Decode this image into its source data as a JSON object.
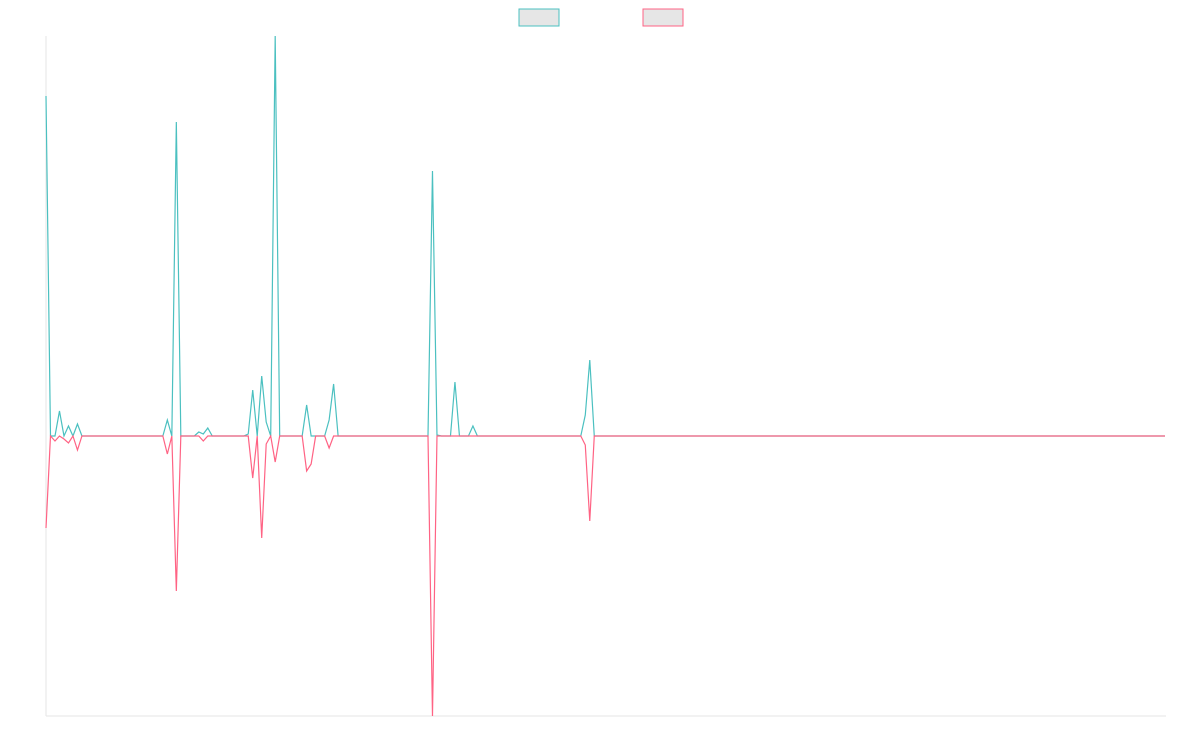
{
  "chart_data": {
    "type": "line",
    "ylim": [
      -280,
      400
    ],
    "series": [
      {
        "color": "#4bc0c0",
        "values": [
          340,
          0,
          0,
          25,
          0,
          10,
          0,
          12,
          0,
          0,
          0,
          0,
          0,
          0,
          0,
          0,
          0,
          0,
          0,
          0,
          0,
          0,
          0,
          0,
          0,
          0,
          0,
          16,
          0,
          314,
          0,
          0,
          0,
          0,
          4,
          2,
          8,
          0,
          0,
          0,
          0,
          0,
          0,
          0,
          0,
          2,
          46,
          0,
          60,
          14,
          0,
          400,
          0,
          0,
          0,
          0,
          0,
          0,
          31,
          0,
          0,
          0,
          0,
          16,
          52,
          0,
          0,
          0,
          0,
          0,
          0,
          0,
          0,
          0,
          0,
          0,
          0,
          0,
          0,
          0,
          0,
          0,
          0,
          0,
          0,
          0,
          265,
          1,
          0,
          0,
          0,
          54,
          0,
          0,
          0,
          10,
          0,
          0,
          0,
          0,
          0,
          0,
          0,
          0,
          0,
          0,
          0,
          0,
          0,
          0,
          0,
          0,
          0,
          0,
          0,
          0,
          0,
          0,
          0,
          0,
          21,
          76,
          0,
          0,
          0,
          0,
          0,
          0,
          0,
          0,
          0,
          0,
          0,
          0,
          0,
          0,
          0,
          0,
          0,
          0,
          0,
          0,
          0,
          0,
          0,
          0,
          0,
          0,
          0,
          0,
          0,
          0,
          0,
          0,
          0,
          0,
          0,
          0,
          0,
          0,
          0,
          0,
          0,
          0,
          0,
          0,
          0,
          0,
          0,
          0,
          0,
          0,
          0,
          0,
          0,
          0,
          0,
          0,
          0,
          0,
          0,
          0,
          0,
          0,
          0,
          0,
          0,
          0,
          0,
          0,
          0,
          0,
          0,
          0,
          0,
          0,
          0,
          0,
          0,
          0,
          0,
          0,
          0,
          0,
          0,
          0,
          0,
          0,
          0,
          0,
          0,
          0,
          0,
          0,
          0,
          0,
          0,
          0,
          0,
          0,
          0,
          0,
          0,
          0,
          0,
          0,
          0,
          0,
          0,
          0,
          0,
          0,
          0,
          0,
          0,
          0,
          0,
          0,
          0,
          0,
          0,
          0,
          0,
          0,
          0,
          0,
          0,
          0,
          0,
          0
        ]
      },
      {
        "color": "#ff6384",
        "values": [
          -92,
          0,
          -5,
          0,
          -3,
          -7,
          0,
          -14,
          0,
          0,
          0,
          0,
          0,
          0,
          0,
          0,
          0,
          0,
          0,
          0,
          0,
          0,
          0,
          0,
          0,
          0,
          0,
          -18,
          0,
          -155,
          0,
          0,
          0,
          0,
          0,
          -5,
          0,
          0,
          0,
          0,
          0,
          0,
          0,
          0,
          0,
          0,
          -42,
          0,
          -102,
          -8,
          0,
          -26,
          0,
          0,
          0,
          0,
          0,
          0,
          -35,
          -28,
          0,
          0,
          0,
          -12,
          0,
          0,
          0,
          0,
          0,
          0,
          0,
          0,
          0,
          0,
          0,
          0,
          0,
          0,
          0,
          0,
          0,
          0,
          0,
          0,
          0,
          0,
          -280,
          0,
          0,
          0,
          0,
          0,
          0,
          0,
          0,
          0,
          0,
          0,
          0,
          0,
          0,
          0,
          0,
          0,
          0,
          0,
          0,
          0,
          0,
          0,
          0,
          0,
          0,
          0,
          0,
          0,
          0,
          0,
          0,
          0,
          -9,
          -85,
          0,
          0,
          0,
          0,
          0,
          0,
          0,
          0,
          0,
          0,
          0,
          0,
          0,
          0,
          0,
          0,
          0,
          0,
          0,
          0,
          0,
          0,
          0,
          0,
          0,
          0,
          0,
          0,
          0,
          0,
          0,
          0,
          0,
          0,
          0,
          0,
          0,
          0,
          0,
          0,
          0,
          0,
          0,
          0,
          0,
          0,
          0,
          0,
          0,
          0,
          0,
          0,
          0,
          0,
          0,
          0,
          0,
          0,
          0,
          0,
          0,
          0,
          0,
          0,
          0,
          0,
          0,
          0,
          0,
          0,
          0,
          0,
          0,
          0,
          0,
          0,
          0,
          0,
          0,
          0,
          0,
          0,
          0,
          0,
          0,
          0,
          0,
          0,
          0,
          0,
          0,
          0,
          0,
          0,
          0,
          0,
          0,
          0,
          0,
          0,
          0,
          0,
          0,
          0,
          0,
          0,
          0,
          0,
          0,
          0,
          0,
          0,
          0,
          0,
          0,
          0,
          0,
          0,
          0,
          0,
          0,
          0,
          0,
          0,
          0,
          0,
          0,
          0
        ]
      }
    ]
  }
}
